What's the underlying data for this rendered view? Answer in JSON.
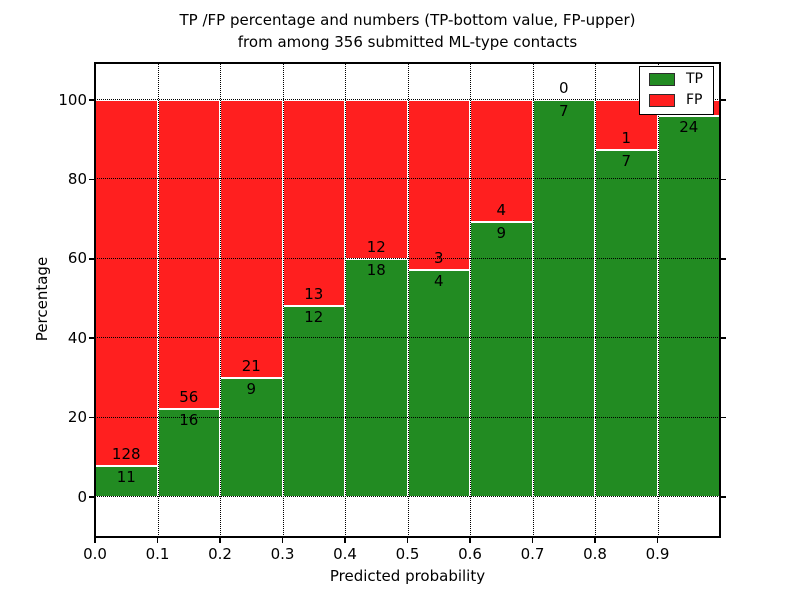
{
  "figure": {
    "title_line1": "TP /FP percentage and numbers (TP-bottom value, FP-upper)",
    "title_line2": "from among 356 submitted ML-type contacts",
    "xlabel": "Predicted probability",
    "ylabel": "Percentage"
  },
  "legend": {
    "position": "upper right",
    "items": [
      {
        "label": "TP",
        "color": "#228b22"
      },
      {
        "label": "FP",
        "color": "#ff1f1f"
      }
    ]
  },
  "axes": {
    "x_ticks": [
      "0.0",
      "0.1",
      "0.2",
      "0.3",
      "0.4",
      "0.5",
      "0.6",
      "0.7",
      "0.8",
      "0.9"
    ],
    "y_ticks": [
      "0",
      "20",
      "40",
      "60",
      "80",
      "100"
    ]
  },
  "chart_data": {
    "type": "bar",
    "stacked": true,
    "title": "TP /FP percentage and numbers (TP-bottom value, FP-upper) from among 356 submitted ML-type contacts",
    "xlabel": "Predicted probability",
    "ylabel": "Percentage",
    "bin_edges": [
      0.0,
      0.1,
      0.2,
      0.3,
      0.4,
      0.5,
      0.6,
      0.7,
      0.8,
      0.9,
      1.0
    ],
    "xlim": [
      0.0,
      1.0
    ],
    "ylim": [
      -10,
      109
    ],
    "grid": "dotted-black",
    "legend_position": "upper right",
    "series": [
      {
        "name": "TP",
        "color": "#228b22",
        "counts": [
          11,
          16,
          9,
          12,
          18,
          4,
          9,
          7,
          7,
          24
        ],
        "pct": [
          7.9,
          22.2,
          30.0,
          48.0,
          60.0,
          57.1,
          69.2,
          100.0,
          87.5,
          96.0
        ]
      },
      {
        "name": "FP",
        "color": "#ff1f1f",
        "counts": [
          128,
          56,
          21,
          13,
          12,
          3,
          4,
          0,
          1,
          null
        ],
        "pct": [
          92.1,
          77.8,
          70.0,
          52.0,
          40.0,
          42.9,
          30.8,
          0.0,
          12.5,
          4.0
        ]
      }
    ],
    "bar_labels": {
      "tp": [
        "11",
        "16",
        "9",
        "12",
        "18",
        "4",
        "9",
        "7",
        "7",
        "24"
      ],
      "fp": [
        "128",
        "56",
        "21",
        "13",
        "12",
        "3",
        "4",
        "0",
        "1",
        ""
      ]
    }
  }
}
